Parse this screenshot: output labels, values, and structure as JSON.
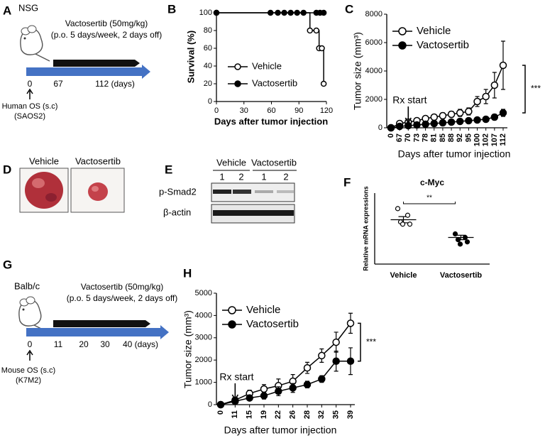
{
  "panel_labels": {
    "a": "A",
    "b": "B",
    "c": "C",
    "d": "D",
    "e": "E",
    "f": "F",
    "g": "G",
    "h": "H"
  },
  "panel_a": {
    "strain": "NSG",
    "treatment": "Vactosertib (50mg/kg)",
    "schedule": "(p.o. 5 days/week, 2 days off)",
    "timeline": [
      "0",
      "67",
      "112 (days)"
    ],
    "injection": "Human OS (s.c)",
    "cell_line": "(SAOS2)"
  },
  "panel_d": {
    "labels": [
      "Vehicle",
      "Vactosertib"
    ]
  },
  "panel_e": {
    "groups": [
      "Vehicle",
      "Vactosertib"
    ],
    "lanes": [
      "1",
      "2",
      "1",
      "2"
    ],
    "proteins": [
      "p-Smad2",
      "β-actin"
    ]
  },
  "panel_g": {
    "strain": "Balb/c",
    "treatment": "Vactosertib  (50mg/kg)",
    "schedule": "(p.o. 5 days/week, 2 days off)",
    "timeline": [
      "0",
      "11",
      "20",
      "30",
      "40 (days)"
    ],
    "injection": "Mouse OS (s.c)",
    "cell_line": "(K7M2)"
  },
  "chart_data": [
    {
      "type": "line",
      "steps": true,
      "x_label": "Days after tumor injection",
      "y_label": "Survival (%)",
      "xlim": [
        0,
        120
      ],
      "xticks": [
        0,
        30,
        60,
        90,
        120
      ],
      "ylim": [
        0,
        100
      ],
      "yticks": [
        0,
        20,
        40,
        60,
        80,
        100
      ],
      "legend": "center",
      "series": [
        {
          "name": "Vehicle",
          "color": "#000000",
          "marker_fill": "#ffffff",
          "x": [
            0,
            102,
            109,
            112,
            115,
            117
          ],
          "values": [
            100,
            80,
            80,
            60,
            60,
            20
          ]
        },
        {
          "name": "Vactosertib",
          "color": "#000000",
          "marker_fill": "#000000",
          "x": [
            0,
            59,
            67,
            74,
            81,
            88,
            95,
            109,
            113,
            117
          ],
          "values": [
            100,
            100,
            100,
            100,
            100,
            100,
            100,
            100,
            100,
            100
          ]
        }
      ]
    },
    {
      "type": "line",
      "x_label": "Days after tumor injection",
      "y_label": "Tumor size (mm³)",
      "categories": [
        "0",
        "67",
        "70",
        "73",
        "78",
        "81",
        "85",
        "88",
        "92",
        "95",
        "100",
        "102",
        "107",
        "112"
      ],
      "ylim": [
        0,
        8000
      ],
      "yticks": [
        0,
        2000,
        4000,
        6000,
        8000
      ],
      "legend": "upper-left",
      "annotations": [
        "Rx start",
        "***"
      ],
      "series": [
        {
          "name": "Vehicle",
          "color": "#000000",
          "marker_fill": "#ffffff",
          "values": [
            0,
            300,
            400,
            500,
            650,
            750,
            850,
            950,
            1050,
            1150,
            1850,
            2200,
            3000,
            4400
          ],
          "errors": [
            0,
            100,
            100,
            100,
            150,
            150,
            200,
            200,
            250,
            250,
            350,
            500,
            900,
            1700
          ]
        },
        {
          "name": "Vactosertib",
          "color": "#000000",
          "marker_fill": "#000000",
          "values": [
            0,
            100,
            150,
            200,
            250,
            300,
            350,
            400,
            450,
            500,
            550,
            600,
            750,
            1050
          ],
          "errors": [
            0,
            50,
            50,
            50,
            50,
            50,
            100,
            100,
            100,
            100,
            100,
            150,
            200,
            250
          ]
        }
      ]
    },
    {
      "type": "dot",
      "title": "c-Myc",
      "y_label": "Relative mRNA expressions",
      "categories": [
        "Vehicle",
        "Vactosertib"
      ],
      "ylim": [
        0,
        1.6
      ],
      "annotations": [
        "**"
      ],
      "groups": [
        {
          "color": "#000000",
          "marker_fill": "#ffffff",
          "values": [
            1.25,
            1.1,
            0.95,
            0.9,
            0.9
          ],
          "mean": 1.0,
          "sem": 0.07
        },
        {
          "color": "#000000",
          "marker_fill": "#000000",
          "values": [
            0.68,
            0.6,
            0.55,
            0.5,
            0.45
          ],
          "mean": 0.6,
          "sem": 0.05
        }
      ]
    },
    {
      "type": "line",
      "x_label": "Days after tumor injection",
      "y_label": "Tumor size (mm³)",
      "categories": [
        "0",
        "11",
        "15",
        "19",
        "22",
        "26",
        "28",
        "32",
        "35",
        "39"
      ],
      "ylim": [
        0,
        5000
      ],
      "yticks": [
        0,
        1000,
        2000,
        3000,
        4000,
        5000
      ],
      "legend": "upper-left",
      "annotations": [
        "Rx start",
        "***"
      ],
      "series": [
        {
          "name": "Vehicle",
          "color": "#000000",
          "marker_fill": "#ffffff",
          "values": [
            0,
            200,
            500,
            700,
            850,
            1050,
            1650,
            2200,
            2800,
            3650
          ],
          "errors": [
            0,
            50,
            150,
            200,
            300,
            300,
            250,
            300,
            450,
            450
          ]
        },
        {
          "name": "Vactosertib",
          "color": "#000000",
          "marker_fill": "#000000",
          "values": [
            0,
            150,
            300,
            400,
            600,
            750,
            900,
            1150,
            1950,
            1950
          ],
          "errors": [
            0,
            50,
            100,
            150,
            200,
            200,
            150,
            150,
            450,
            600
          ]
        }
      ]
    }
  ]
}
